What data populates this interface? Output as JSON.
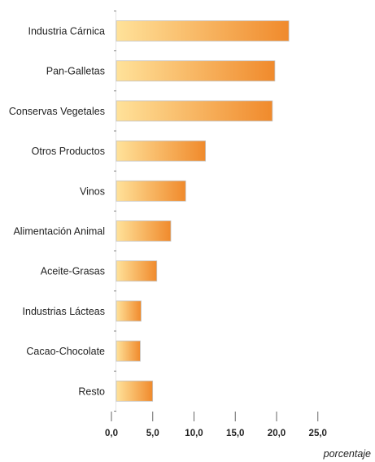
{
  "chart_data": {
    "type": "bar",
    "orientation": "horizontal",
    "categories": [
      "Industria Cárnica",
      "Pan-Galletas",
      "Conservas Vegetales",
      "Otros Productos",
      "Vinos",
      "Alimentación Animal",
      "Aceite-Grasas",
      "Industrias Lácteas",
      "Cacao-Chocolate",
      "Resto"
    ],
    "values": [
      20.9,
      19.2,
      18.9,
      10.8,
      8.4,
      6.6,
      4.9,
      3.0,
      2.9,
      4.4
    ],
    "xlabel": "porcentaje",
    "xlim": [
      0,
      25
    ],
    "xticks": [
      0,
      5,
      10,
      15,
      20,
      25
    ],
    "xtick_labels": [
      "0,0",
      "5,0",
      "10,0",
      "15,0",
      "20,0",
      "25,0"
    ],
    "grid": false,
    "colors": {
      "bar_start": "#FFE29A",
      "bar_end": "#F08A2C",
      "bar_border": "#C4C4C4",
      "axis": "#666666"
    }
  }
}
